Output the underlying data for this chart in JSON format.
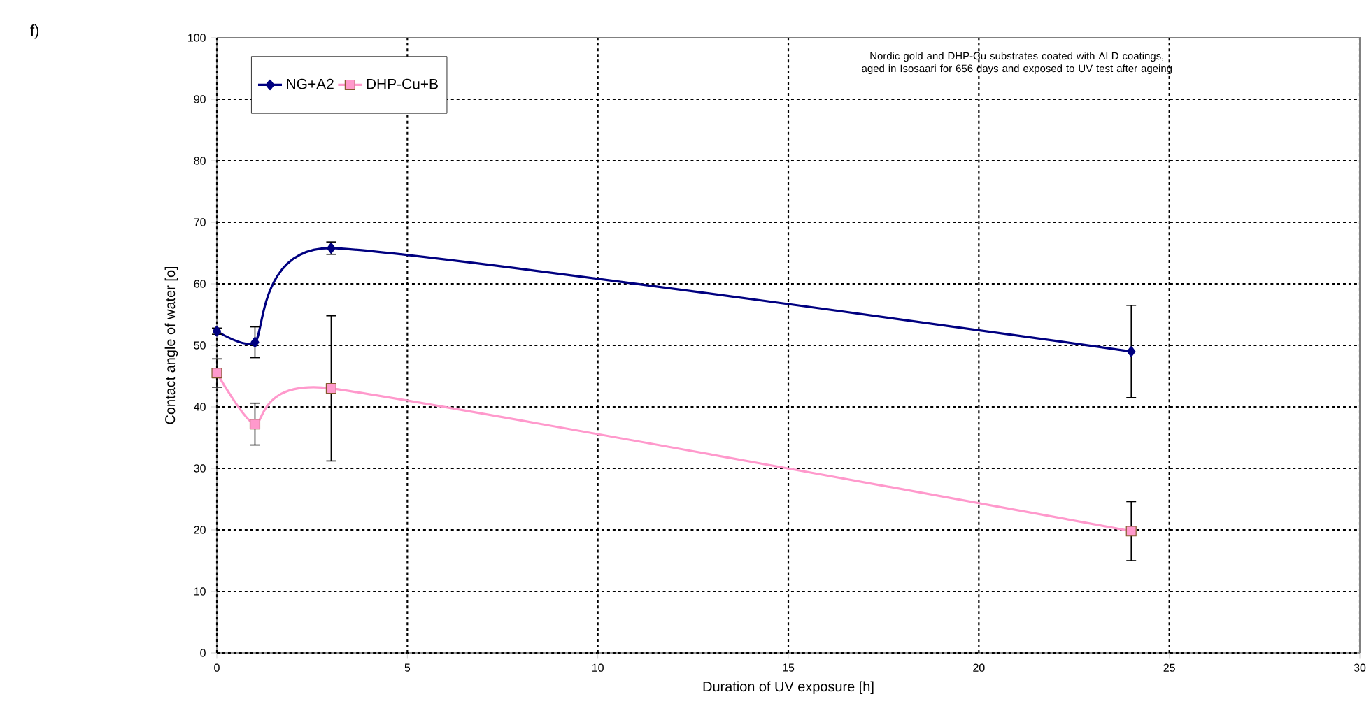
{
  "chart_data": {
    "type": "line",
    "xlabel": "Duration of UV exposure [h]",
    "ylabel": "Contact angle of water [o]",
    "annotations": [
      "f)",
      "Nordic gold and DHP-Cu substrates coated with ALD coatings, aged in Isosaari for 656 days and exposed to UV test after ageing"
    ],
    "x": [
      0,
      1,
      3,
      24
    ],
    "series": [
      {
        "name": "NG+A2",
        "color": "#000080",
        "marker": "diamond",
        "values": [
          52.3,
          50.5,
          65.8,
          49
        ],
        "errors": [
          0.5,
          2.5,
          1,
          7.5
        ]
      },
      {
        "name": "DHP-Cu+B",
        "color": "#ff99cc",
        "marker": "square",
        "values": [
          45.5,
          37.2,
          43,
          19.8
        ],
        "errors": [
          2.3,
          3.4,
          11.8,
          4.8
        ]
      }
    ],
    "xlim": [
      0,
      30
    ],
    "xticks": [
      0,
      5,
      10,
      15,
      20,
      25,
      30
    ],
    "ylim": [
      0,
      100
    ],
    "yticks": [
      0,
      10,
      20,
      30,
      40,
      50,
      60,
      70,
      80,
      90,
      100
    ],
    "grid": true,
    "legend": "top left",
    "line_style": "solid"
  }
}
